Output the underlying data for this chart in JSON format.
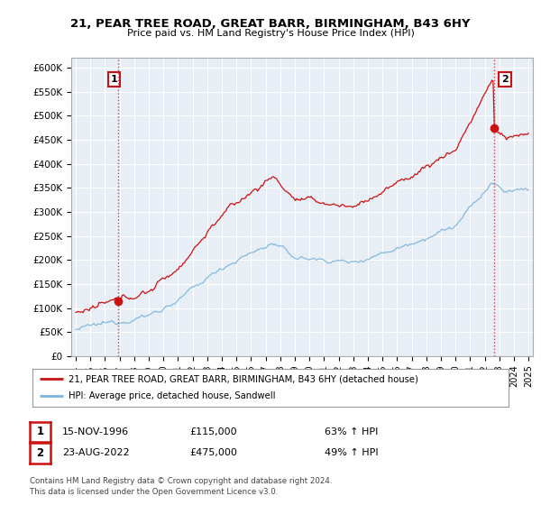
{
  "title": "21, PEAR TREE ROAD, GREAT BARR, BIRMINGHAM, B43 6HY",
  "subtitle": "Price paid vs. HM Land Registry's House Price Index (HPI)",
  "ylim": [
    0,
    620000
  ],
  "yticks": [
    0,
    50000,
    100000,
    150000,
    200000,
    250000,
    300000,
    350000,
    400000,
    450000,
    500000,
    550000,
    600000
  ],
  "ytick_labels": [
    "£0",
    "£50K",
    "£100K",
    "£150K",
    "£200K",
    "£250K",
    "£300K",
    "£350K",
    "£400K",
    "£450K",
    "£500K",
    "£550K",
    "£600K"
  ],
  "hpi_color": "#7ab4dc",
  "price_color": "#cc1111",
  "background_color": "#ffffff",
  "plot_bg_color": "#e8eef5",
  "grid_color": "#ffffff",
  "point1_x": 1996.88,
  "point1_y": 115000,
  "point1_label": "1",
  "point2_x": 2022.64,
  "point2_y": 475000,
  "point2_label": "2",
  "legend_label_red": "21, PEAR TREE ROAD, GREAT BARR, BIRMINGHAM, B43 6HY (detached house)",
  "legend_label_blue": "HPI: Average price, detached house, Sandwell",
  "footer_line1": "Contains HM Land Registry data © Crown copyright and database right 2024.",
  "footer_line2": "This data is licensed under the Open Government Licence v3.0.",
  "table_row1_num": "1",
  "table_row1_date": "15-NOV-1996",
  "table_row1_price": "£115,000",
  "table_row1_hpi": "63% ↑ HPI",
  "table_row2_num": "2",
  "table_row2_date": "23-AUG-2022",
  "table_row2_price": "£475,000",
  "table_row2_hpi": "49% ↑ HPI",
  "xlim_left": 1993.7,
  "xlim_right": 2025.3
}
